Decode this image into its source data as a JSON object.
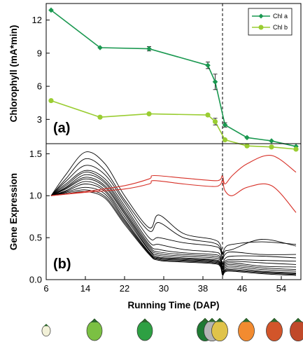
{
  "colors": {
    "chla": "#1a9850",
    "chlb": "#9acd32",
    "gene": "#000000",
    "gene_highlight": "#d73027",
    "marker_line": "#000000"
  },
  "chart_data": [
    {
      "type": "line",
      "panel_label": "(a)",
      "ylabel": "Chlorophyll (mA*min)",
      "ylim": [
        0.8,
        13.5
      ],
      "yticks": [
        "3",
        "6",
        "9",
        "12"
      ],
      "xlim": [
        6,
        58
      ],
      "grid": false,
      "legend": "top-right",
      "vline_x": 42,
      "series": [
        {
          "name": "Chl a",
          "x": [
            7,
            17,
            27,
            39,
            40.5,
            42.5,
            47,
            52,
            57
          ],
          "y": [
            12.9,
            9.5,
            9.4,
            7.9,
            6.4,
            2.5,
            1.35,
            1.05,
            0.55
          ],
          "err": [
            0.1,
            0.1,
            0.2,
            0.3,
            0.7,
            0.2,
            0.1,
            0.1,
            0.1
          ]
        },
        {
          "name": "Chl b",
          "x": [
            7,
            17,
            27,
            39,
            40.5,
            42.5,
            47,
            52,
            57
          ],
          "y": [
            4.7,
            3.2,
            3.5,
            3.4,
            2.8,
            1.15,
            0.6,
            0.5,
            0.3
          ],
          "err": [
            0.05,
            0.05,
            0.05,
            0.1,
            0.3,
            0.1,
            0.05,
            0.05,
            0.05
          ]
        }
      ]
    },
    {
      "type": "line",
      "panel_label": "(b)",
      "ylabel": "Gene Expression",
      "xlabel": "Running Time (DAP)",
      "ylim": [
        0,
        1.62
      ],
      "yticks": [
        "0.0",
        "0.5",
        "1.0",
        "1.5"
      ],
      "xlim": [
        6,
        58
      ],
      "xticks": [
        "6",
        "14",
        "22",
        "30",
        "38",
        "46",
        "54"
      ],
      "grid": false,
      "vline_x": 42,
      "series": [
        {
          "x": [
            7,
            10,
            14,
            18,
            22,
            27,
            29,
            34,
            40,
            41.5,
            42,
            42.5,
            44,
            50,
            57
          ],
          "y": [
            1.0,
            1.25,
            1.52,
            1.38,
            1.0,
            0.62,
            0.77,
            0.55,
            0.48,
            0.42,
            0.3,
            0.38,
            0.42,
            0.45,
            0.42
          ]
        },
        {
          "x": [
            7,
            10,
            14,
            18,
            22,
            27,
            29,
            34,
            40,
            41.5,
            42,
            42.5,
            44,
            50,
            57
          ],
          "y": [
            1.0,
            1.2,
            1.44,
            1.3,
            0.95,
            0.58,
            0.68,
            0.5,
            0.44,
            0.38,
            0.26,
            0.34,
            0.36,
            0.48,
            0.4
          ]
        },
        {
          "x": [
            7,
            10,
            14,
            18,
            22,
            27,
            29,
            34,
            40,
            41.5,
            42,
            42.5,
            44,
            50,
            57
          ],
          "y": [
            1.0,
            1.17,
            1.36,
            1.25,
            0.92,
            0.5,
            0.5,
            0.44,
            0.4,
            0.36,
            0.24,
            0.3,
            0.33,
            0.3,
            0.3
          ]
        },
        {
          "x": [
            7,
            10,
            14,
            18,
            22,
            27,
            29,
            34,
            40,
            41.5,
            42,
            42.5,
            44,
            50,
            57
          ],
          "y": [
            1.0,
            1.14,
            1.3,
            1.2,
            0.88,
            0.45,
            0.42,
            0.36,
            0.33,
            0.3,
            0.18,
            0.25,
            0.28,
            0.28,
            0.26
          ]
        },
        {
          "x": [
            7,
            10,
            14,
            18,
            22,
            27,
            29,
            34,
            40,
            41.5,
            42,
            42.5,
            44,
            50,
            57
          ],
          "y": [
            1.0,
            1.12,
            1.28,
            1.17,
            0.85,
            0.42,
            0.36,
            0.32,
            0.3,
            0.27,
            0.16,
            0.22,
            0.24,
            0.23,
            0.22
          ]
        },
        {
          "x": [
            7,
            10,
            14,
            18,
            22,
            27,
            29,
            34,
            40,
            41.5,
            42,
            42.5,
            44,
            50,
            57
          ],
          "y": [
            1.0,
            1.1,
            1.25,
            1.15,
            0.82,
            0.4,
            0.33,
            0.3,
            0.28,
            0.25,
            0.14,
            0.2,
            0.22,
            0.2,
            0.18
          ]
        },
        {
          "x": [
            7,
            10,
            14,
            18,
            22,
            27,
            29,
            34,
            40,
            41.5,
            42,
            42.5,
            44,
            50,
            57
          ],
          "y": [
            1.0,
            1.09,
            1.22,
            1.12,
            0.8,
            0.38,
            0.31,
            0.28,
            0.26,
            0.23,
            0.12,
            0.18,
            0.2,
            0.16,
            0.15
          ]
        },
        {
          "x": [
            7,
            10,
            14,
            18,
            22,
            27,
            29,
            34,
            40,
            41.5,
            42,
            42.5,
            44,
            50,
            57
          ],
          "y": [
            1.0,
            1.08,
            1.2,
            1.1,
            0.78,
            0.36,
            0.29,
            0.26,
            0.24,
            0.21,
            0.1,
            0.16,
            0.18,
            0.14,
            0.12
          ]
        },
        {
          "x": [
            7,
            10,
            14,
            18,
            22,
            27,
            29,
            34,
            40,
            41.5,
            42,
            42.5,
            44,
            50,
            57
          ],
          "y": [
            1.0,
            1.06,
            1.17,
            1.07,
            0.75,
            0.35,
            0.27,
            0.25,
            0.23,
            0.2,
            0.09,
            0.14,
            0.16,
            0.12,
            0.1
          ]
        },
        {
          "x": [
            7,
            10,
            14,
            18,
            22,
            27,
            29,
            34,
            40,
            41.5,
            42,
            42.5,
            44,
            50,
            57
          ],
          "y": [
            1.0,
            1.05,
            1.14,
            1.05,
            0.72,
            0.33,
            0.26,
            0.24,
            0.22,
            0.19,
            0.08,
            0.12,
            0.14,
            0.1,
            0.08
          ]
        },
        {
          "x": [
            7,
            10,
            14,
            18,
            22,
            27,
            29,
            34,
            40,
            41.5,
            42,
            42.5,
            44,
            50,
            57
          ],
          "y": [
            1.0,
            1.04,
            1.1,
            1.02,
            0.7,
            0.32,
            0.25,
            0.23,
            0.21,
            0.18,
            0.07,
            0.11,
            0.12,
            0.09,
            0.07
          ]
        },
        {
          "x": [
            7,
            10,
            14,
            18,
            22,
            27,
            29,
            34,
            40,
            41.5,
            42,
            42.5,
            44,
            50,
            57
          ],
          "y": [
            1.0,
            1.03,
            1.07,
            0.99,
            0.68,
            0.31,
            0.24,
            0.22,
            0.2,
            0.17,
            0.06,
            0.1,
            0.11,
            0.08,
            0.06
          ]
        },
        {
          "x": [
            7,
            10,
            14,
            18,
            22,
            27,
            29,
            34,
            40,
            41.5,
            42,
            42.5,
            44,
            50,
            57
          ],
          "y": [
            1.0,
            1.02,
            1.05,
            0.97,
            0.66,
            0.3,
            0.23,
            0.21,
            0.19,
            0.16,
            0.05,
            0.09,
            0.1,
            0.07,
            0.05
          ]
        }
      ],
      "highlight_series": [
        {
          "x": [
            7,
            14,
            22,
            27,
            28,
            34,
            40,
            41.5,
            42,
            42.5,
            44,
            47,
            52,
            57
          ],
          "y": [
            1.0,
            1.05,
            1.12,
            1.2,
            1.24,
            1.21,
            1.18,
            1.19,
            1.24,
            1.14,
            1.24,
            1.38,
            1.48,
            1.28
          ]
        },
        {
          "x": [
            7,
            14,
            22,
            27,
            28,
            34,
            40,
            41.5,
            42,
            42.5,
            44,
            47,
            52,
            57
          ],
          "y": [
            1.0,
            1.04,
            1.08,
            1.14,
            1.18,
            1.14,
            1.11,
            1.13,
            1.18,
            1.06,
            1.0,
            1.1,
            1.12,
            0.8
          ]
        }
      ]
    }
  ],
  "legend": {
    "items": [
      "Chl a",
      "Chl b"
    ]
  },
  "fruit_strip": {
    "count": 10,
    "colors": [
      "#f2f1d8",
      "#7bc043",
      "#2ea043",
      "#1f7a33",
      "#b5b5b5",
      "#e0c34a",
      "#f7b733",
      "#f28b30",
      "#d2552a",
      "#c0492a"
    ]
  }
}
